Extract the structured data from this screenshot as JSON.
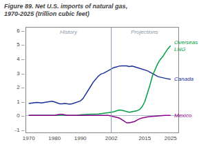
{
  "chart_data": {
    "type": "line",
    "title": "Figure 89. Net U.S. imports of natural gas,\n1970-2025 (trillion cubic feet)",
    "x": [
      1970,
      1971,
      1972,
      1973,
      1974,
      1975,
      1976,
      1977,
      1978,
      1979,
      1980,
      1981,
      1982,
      1983,
      1984,
      1985,
      1986,
      1987,
      1988,
      1989,
      1990,
      1991,
      1992,
      1993,
      1994,
      1995,
      1996,
      1997,
      1998,
      1999,
      2000,
      2001,
      2002,
      2003,
      2004,
      2005,
      2006,
      2007,
      2008,
      2009,
      2010,
      2011,
      2012,
      2013,
      2014,
      2015,
      2016,
      2017,
      2018,
      2019,
      2020,
      2021,
      2022,
      2023,
      2024,
      2025
    ],
    "series": [
      {
        "name": "Canada",
        "color": "#1a2f9a",
        "values": [
          0.85,
          0.87,
          0.9,
          0.92,
          0.9,
          0.88,
          0.92,
          0.95,
          0.98,
          1.0,
          0.95,
          0.9,
          0.82,
          0.82,
          0.85,
          0.82,
          0.8,
          0.83,
          0.9,
          0.96,
          1.02,
          1.18,
          1.45,
          1.75,
          2.05,
          2.35,
          2.58,
          2.78,
          2.92,
          2.98,
          3.08,
          3.18,
          3.32,
          3.38,
          3.42,
          3.48,
          3.5,
          3.5,
          3.5,
          3.45,
          3.48,
          3.44,
          3.38,
          3.32,
          3.28,
          3.22,
          3.15,
          3.05,
          2.95,
          2.85,
          2.75,
          2.7,
          2.65,
          2.6,
          2.58,
          2.55
        ]
      },
      {
        "name": "Overseas\nLNG",
        "color": "#00a040",
        "values": [
          0.0,
          0.0,
          0.0,
          0.0,
          0.0,
          0.0,
          0.0,
          0.0,
          0.0,
          0.0,
          0.0,
          0.0,
          0.0,
          0.0,
          0.0,
          0.0,
          0.0,
          0.0,
          0.0,
          0.02,
          0.04,
          0.06,
          0.08,
          0.09,
          0.09,
          0.09,
          0.09,
          0.1,
          0.13,
          0.17,
          0.18,
          0.2,
          0.22,
          0.26,
          0.32,
          0.38,
          0.37,
          0.33,
          0.28,
          0.22,
          0.26,
          0.28,
          0.33,
          0.42,
          0.62,
          0.98,
          1.55,
          2.15,
          2.82,
          3.25,
          3.65,
          3.95,
          4.15,
          4.45,
          4.72,
          4.92
        ]
      },
      {
        "name": "Mexico",
        "color": "#8b008b",
        "values": [
          0.0,
          0.0,
          0.0,
          0.0,
          0.0,
          0.0,
          0.0,
          0.0,
          0.0,
          0.0,
          0.0,
          0.04,
          0.08,
          0.08,
          0.04,
          0.01,
          0.0,
          0.0,
          0.0,
          0.0,
          -0.01,
          -0.01,
          0.0,
          0.0,
          0.0,
          0.0,
          0.0,
          0.0,
          0.0,
          0.0,
          0.0,
          0.0,
          -0.04,
          -0.08,
          -0.12,
          -0.18,
          -0.28,
          -0.42,
          -0.52,
          -0.52,
          -0.48,
          -0.43,
          -0.33,
          -0.23,
          -0.18,
          -0.13,
          -0.1,
          -0.08,
          -0.06,
          -0.04,
          -0.02,
          -0.01,
          -0.01,
          0.0,
          0.0,
          0.0
        ]
      }
    ],
    "xlim": [
      1969,
      2028
    ],
    "ylim": [
      -1.2,
      6.2
    ],
    "xticks": [
      1970,
      1980,
      1990,
      2002,
      2015,
      2025
    ],
    "yticks": [
      {
        "value": -1,
        "label": "-1 –"
      },
      {
        "value": 0,
        "label": "0 –"
      },
      {
        "value": 1,
        "label": "1 –"
      },
      {
        "value": 2,
        "label": "2 –"
      },
      {
        "value": 3,
        "label": "3 –"
      },
      {
        "value": 4,
        "label": "4 –"
      },
      {
        "value": 5,
        "label": "5 –"
      },
      {
        "value": 6,
        "label": "6 –"
      }
    ],
    "annotations": [
      {
        "text": "History"
      },
      {
        "text": "Projections"
      }
    ],
    "divider_x": 2002,
    "grid": false
  }
}
